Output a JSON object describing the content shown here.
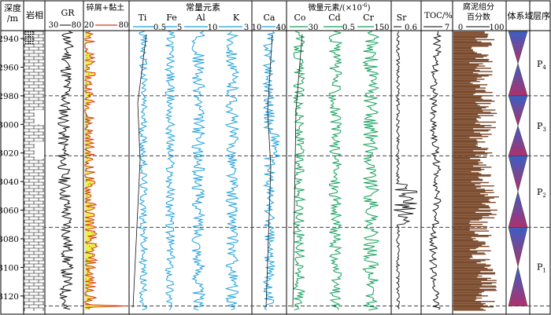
{
  "columns": {
    "depth": "深度/m",
    "lithology": "岩相",
    "gr": "GR",
    "clastic": "碎屑+黏土",
    "major_group": "常量元素",
    "trace_group": "微量元素/(×10",
    "trace_group_sup": "-6",
    "trace_group_tail": ")",
    "sr": "Sr",
    "toc": "TOC/%",
    "sapro": "腐泥组分百分数",
    "systems_tract": "体系域",
    "layer": "层序"
  },
  "colors": {
    "major": "#1fa0dc",
    "trace": "#12a05a",
    "clastic_fill": "#eef04a",
    "clastic_line": "#d63a12",
    "sapro_fill": "#7a4a2c",
    "tract_top": "#3a5fc4",
    "tract_bottom": "#b0306a"
  },
  "chart_data": {
    "type": "well-log",
    "depth_axis": {
      "range": [
        2935,
        3130
      ],
      "ticks": [
        2940,
        2960,
        2980,
        3000,
        3020,
        3040,
        3060,
        3080,
        3100,
        3120
      ]
    },
    "boundaries_m": [
      2980,
      3022,
      3072,
      3127
    ],
    "tracks": [
      {
        "id": "gr",
        "label": "GR",
        "scale": [
          30,
          80
        ]
      },
      {
        "id": "clastic",
        "label": "碎屑+黏土",
        "scale": [
          20,
          80
        ]
      },
      {
        "id": "ti",
        "label": "Ti",
        "scale_max": "0.5"
      },
      {
        "id": "fe",
        "label": "Fe",
        "scale_max": "5"
      },
      {
        "id": "al",
        "label": "Al",
        "scale_max": "10"
      },
      {
        "id": "k",
        "label": "K",
        "scale_max": "3"
      },
      {
        "id": "ca",
        "label": "Ca",
        "scale": [
          10,
          40
        ]
      },
      {
        "id": "co",
        "label": "Co",
        "scale_max": "30"
      },
      {
        "id": "cd",
        "label": "Cd",
        "scale_max": "0.5"
      },
      {
        "id": "cr",
        "label": "Cr",
        "scale_max": "150"
      },
      {
        "id": "sr",
        "label": "Sr",
        "scale_max": "0.6"
      },
      {
        "id": "toc",
        "label": "TOC/%",
        "scale_max": "7"
      },
      {
        "id": "sapro",
        "label": "腐泥组分百分数",
        "scale": [
          0,
          100
        ]
      }
    ],
    "sequences": [
      {
        "name": "P4",
        "top": 2935,
        "bottom": 2980
      },
      {
        "name": "P3",
        "top": 2980,
        "bottom": 3022
      },
      {
        "name": "P2",
        "top": 3022,
        "bottom": 3072
      },
      {
        "name": "P1",
        "top": 3072,
        "bottom": 3127
      }
    ]
  }
}
